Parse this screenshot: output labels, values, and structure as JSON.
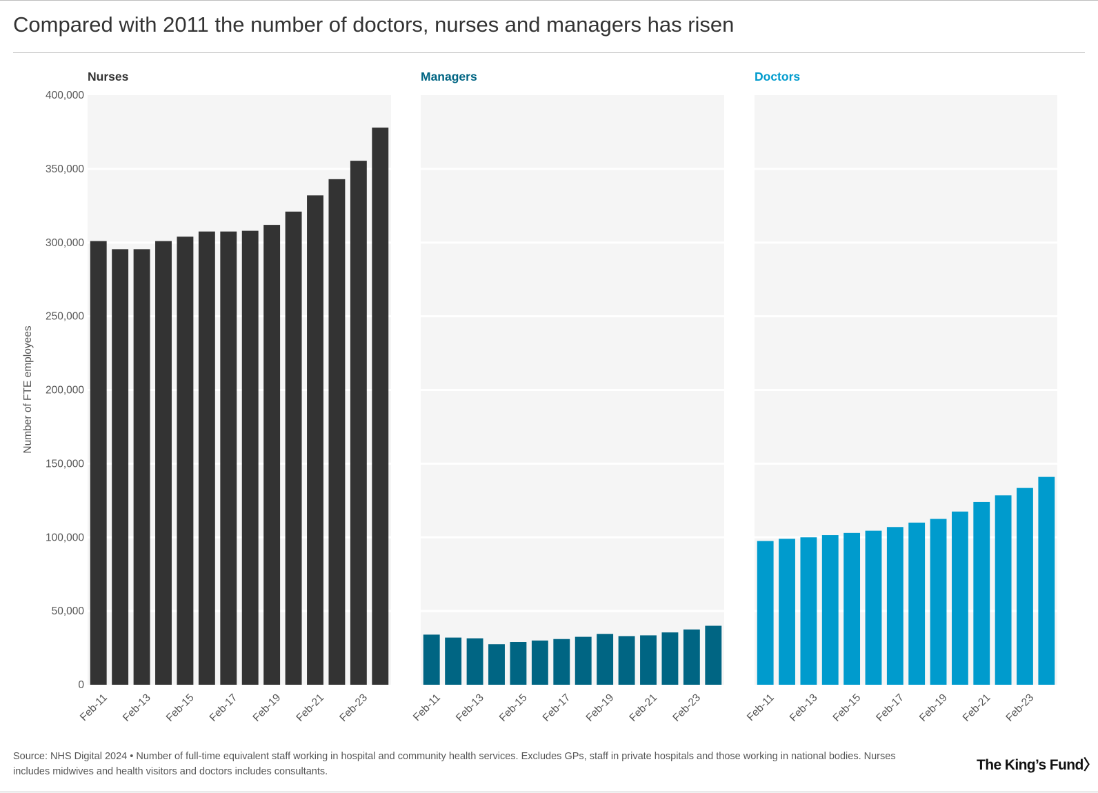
{
  "title": "Compared with 2011 the number of doctors, nurses and managers has risen",
  "footer": {
    "source": "Source: NHS Digital 2024 • Number of full-time equivalent staff working in hospital and community health services. Excludes GPs, staff in private hospitals and those working in national bodies. Nurses includes midwives and health visitors and doctors includes consultants."
  },
  "logo": {
    "text": "The King’s Fund〉"
  },
  "chart_data": {
    "type": "bar",
    "ylabel": "Number of FTE employees",
    "ylim": [
      0,
      400000
    ],
    "yticks": [
      0,
      50000,
      100000,
      150000,
      200000,
      250000,
      300000,
      350000,
      400000
    ],
    "ytick_labels": [
      "0",
      "50,000",
      "100,000",
      "150,000",
      "200,000",
      "250,000",
      "300,000",
      "350,000",
      "400,000"
    ],
    "categories": [
      "Feb-11",
      "Feb-12",
      "Feb-13",
      "Feb-14",
      "Feb-15",
      "Feb-16",
      "Feb-17",
      "Feb-18",
      "Feb-19",
      "Feb-20",
      "Feb-21",
      "Feb-22",
      "Feb-23",
      "Feb-24"
    ],
    "xtick_labels": [
      "Feb-11",
      "Feb-13",
      "Feb-15",
      "Feb-17",
      "Feb-19",
      "Feb-21",
      "Feb-23"
    ],
    "grid": true,
    "series": [
      {
        "name": "Nurses",
        "color": "#333333",
        "values": [
          301000,
          295500,
          295500,
          301000,
          304000,
          307500,
          307500,
          308000,
          312000,
          321000,
          332000,
          343000,
          355500,
          378000
        ]
      },
      {
        "name": "Managers",
        "color": "#006583",
        "values": [
          34000,
          32000,
          31500,
          27500,
          29000,
          30000,
          31000,
          32500,
          34500,
          33000,
          33500,
          35500,
          37500,
          40000
        ]
      },
      {
        "name": "Doctors",
        "color": "#009bcd",
        "values": [
          97500,
          99000,
          100000,
          101500,
          103000,
          104500,
          107000,
          110000,
          112500,
          117500,
          124000,
          128500,
          133500,
          141000
        ]
      }
    ]
  }
}
